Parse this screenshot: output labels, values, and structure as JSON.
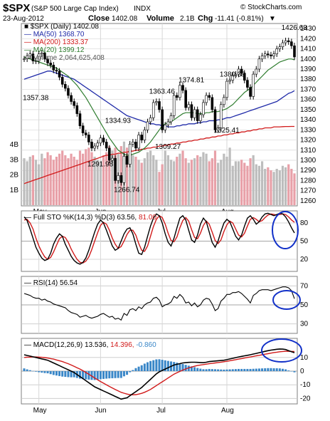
{
  "header": {
    "symbol": "$SPX",
    "name": "(S&P 500 Large Cap Index)",
    "exchange": "INDX",
    "watermark": "© StockCharts.com",
    "date": "23-Aug-2012",
    "close_label": "Close",
    "close_value": "1402.08",
    "volume_label": "Volume",
    "volume_value": "2.1B",
    "chg_label": "Chg",
    "chg_value": "-11.41 (-0.81%)",
    "chg_arrow": "▼"
  },
  "colors": {
    "price": "#000000",
    "ma50": "#1f2aa8",
    "ma200": "#d11a1a",
    "ma20": "#2f7d2f",
    "volume_up": "#bdbdbd",
    "volume_down": "#e8a0a8",
    "sto_k": "#000000",
    "sto_d": "#d11a1a",
    "macd_line": "#000000",
    "signal_line": "#d11a1a",
    "histogram": "#3a87c8",
    "circle": "#1130c8",
    "grid": "#d7d7d7"
  },
  "chart_data": [
    {
      "type": "candlestick",
      "title": "$SPX (Daily) 1402.08",
      "legend": [
        {
          "label": "$SPX (Daily)",
          "value": "1402.08",
          "color_key": "price"
        },
        {
          "label": "MA(50)",
          "value": "1368.70",
          "color_key": "ma50"
        },
        {
          "label": "MA(200)",
          "value": "1333.37",
          "color_key": "ma200"
        },
        {
          "label": "MA(20)",
          "value": "1399.12",
          "color_key": "ma20"
        },
        {
          "label": "Volume",
          "value": "2,064,625,408",
          "color_key": "volume_up"
        }
      ],
      "ylim": [
        1255,
        1435
      ],
      "yticks": [
        1260,
        1270,
        1280,
        1290,
        1300,
        1310,
        1320,
        1330,
        1340,
        1350,
        1360,
        1370,
        1380,
        1390,
        1400,
        1410,
        1420,
        1430
      ],
      "volume_ticks": [
        "1B",
        "2B",
        "3B",
        "4B"
      ],
      "xlabels": [
        "May",
        "Jun",
        "Jul",
        "Aug"
      ],
      "close": [
        1400,
        1403,
        1405,
        1398,
        1398,
        1405,
        1406,
        1400,
        1396,
        1394,
        1389,
        1388,
        1382,
        1375,
        1371,
        1364,
        1358,
        1354,
        1346,
        1334,
        1327,
        1325,
        1318,
        1312,
        1314,
        1317,
        1322,
        1318,
        1312,
        1300,
        1302,
        1280,
        1285,
        1278,
        1304,
        1296,
        1316,
        1318,
        1312,
        1325,
        1320,
        1330,
        1338,
        1342,
        1357,
        1358,
        1350,
        1330,
        1335,
        1338,
        1344,
        1364,
        1362,
        1374,
        1369,
        1352,
        1355,
        1342,
        1350,
        1339,
        1345,
        1357,
        1364,
        1362,
        1350,
        1330,
        1332,
        1355,
        1362,
        1378,
        1379,
        1384,
        1385,
        1390,
        1386,
        1379,
        1372,
        1363,
        1385,
        1390,
        1400,
        1403,
        1405,
        1404,
        1403,
        1405,
        1410,
        1412,
        1416,
        1418,
        1417,
        1413,
        1402
      ],
      "ma50": [
        1380,
        1381,
        1382,
        1383,
        1384,
        1385,
        1386,
        1387,
        1388,
        1388,
        1387,
        1386,
        1385,
        1384,
        1383,
        1382,
        1381,
        1380,
        1378,
        1376,
        1374,
        1372,
        1370,
        1368,
        1366,
        1364,
        1362,
        1360,
        1358,
        1356,
        1354,
        1352,
        1350,
        1348,
        1346,
        1344,
        1343,
        1342,
        1341,
        1340,
        1339,
        1338,
        1337,
        1336,
        1336,
        1335,
        1335,
        1334,
        1334,
        1333,
        1333,
        1333,
        1334,
        1334,
        1335,
        1335,
        1336,
        1336,
        1336,
        1337,
        1337,
        1338,
        1338,
        1339,
        1339,
        1339,
        1340,
        1340,
        1341,
        1342,
        1342,
        1343,
        1344,
        1345,
        1346,
        1347,
        1348,
        1349,
        1350,
        1351,
        1352,
        1353,
        1354,
        1355,
        1356,
        1357,
        1358,
        1360,
        1362,
        1364,
        1366,
        1367,
        1368.7
      ],
      "ma200": [
        1277,
        1278,
        1279,
        1280,
        1281,
        1282,
        1283,
        1284,
        1285,
        1286,
        1287,
        1288,
        1289,
        1290,
        1291,
        1292,
        1293,
        1294,
        1295,
        1296,
        1297,
        1298,
        1299,
        1300,
        1301,
        1302,
        1303,
        1304,
        1305,
        1305,
        1306,
        1306,
        1307,
        1307,
        1308,
        1308,
        1309,
        1309,
        1310,
        1310,
        1311,
        1311,
        1312,
        1312,
        1313,
        1313,
        1314,
        1314,
        1315,
        1315,
        1316,
        1316,
        1317,
        1317,
        1318,
        1318,
        1319,
        1319,
        1320,
        1320,
        1321,
        1321,
        1322,
        1322,
        1323,
        1323,
        1324,
        1324,
        1325,
        1325,
        1326,
        1326,
        1327,
        1327,
        1328,
        1328,
        1329,
        1329,
        1330,
        1330,
        1331,
        1331,
        1332,
        1332,
        1332,
        1333,
        1333,
        1333,
        1333.2,
        1333.3,
        1333.3,
        1333.37,
        1333.37
      ],
      "ma20": [
        1402,
        1401,
        1400,
        1399,
        1398,
        1397,
        1396,
        1395,
        1394,
        1393,
        1392,
        1391,
        1389,
        1387,
        1385,
        1383,
        1380,
        1377,
        1374,
        1370,
        1366,
        1362,
        1357,
        1352,
        1347,
        1342,
        1337,
        1332,
        1327,
        1322,
        1318,
        1314,
        1310,
        1308,
        1306,
        1305,
        1305,
        1306,
        1307,
        1308,
        1310,
        1312,
        1315,
        1318,
        1322,
        1326,
        1330,
        1334,
        1336,
        1337,
        1338,
        1340,
        1342,
        1344,
        1346,
        1347,
        1347,
        1347,
        1347,
        1346,
        1346,
        1346,
        1347,
        1347,
        1348,
        1348,
        1348,
        1349,
        1350,
        1351,
        1353,
        1355,
        1358,
        1361,
        1364,
        1367,
        1369,
        1371,
        1374,
        1377,
        1380,
        1383,
        1386,
        1389,
        1391,
        1393,
        1395,
        1397,
        1398,
        1399,
        1400,
        1400,
        1399.12
      ],
      "volume_b": [
        3.1,
        2.9,
        3.2,
        3.3,
        3.0,
        2.7,
        3.4,
        3.1,
        3.5,
        3.3,
        3.0,
        3.2,
        3.4,
        3.6,
        3.3,
        3.1,
        3.4,
        3.2,
        3.0,
        3.6,
        3.4,
        3.7,
        3.8,
        3.5,
        3.2,
        3.0,
        2.9,
        3.3,
        3.5,
        3.9,
        3.6,
        3.8,
        3.4,
        3.9,
        4.2,
        3.8,
        3.5,
        3.3,
        3.2,
        3.0,
        2.8,
        3.1,
        3.5,
        3.6,
        3.3,
        3.0,
        2.2,
        2.7,
        3.6,
        3.3,
        3.0,
        2.9,
        3.2,
        3.4,
        3.6,
        3.1,
        2.8,
        3.0,
        3.1,
        3.3,
        3.2,
        3.5,
        3.4,
        2.9,
        3.1,
        3.6,
        2.8,
        3.0,
        3.4,
        3.2,
        3.8,
        2.6,
        2.9,
        2.9,
        3.0,
        2.8,
        2.6,
        3.1,
        3.3,
        2.7,
        2.6,
        2.9,
        2.4,
        2.5,
        2.3,
        2.2,
        2.4,
        2.3,
        2.6,
        2.5,
        2.7,
        2.4,
        2.1
      ],
      "annotations": [
        {
          "text": "1426.68",
          "x": 89,
          "y": 1426.68
        },
        {
          "text": "1374.81",
          "x": 54,
          "y": 1374.81
        },
        {
          "text": "1380.39",
          "x": 68,
          "y": 1380.39
        },
        {
          "text": "1363.46",
          "x": 44,
          "y": 1363.46
        },
        {
          "text": "1357.38",
          "x": 1,
          "y": 1357.38
        },
        {
          "text": "1334.93",
          "x": 29,
          "y": 1334.93
        },
        {
          "text": "1325.41",
          "x": 66,
          "y": 1325.41
        },
        {
          "text": "1309.27",
          "x": 46,
          "y": 1309.27
        },
        {
          "text": "1291.98",
          "x": 23,
          "y": 1291.98
        },
        {
          "text": "1266.74",
          "x": 32,
          "y": 1266.74
        }
      ]
    },
    {
      "type": "line",
      "title": "Full STO %K(14,3) %D(3) 63.56, 81.00",
      "legend": [
        {
          "label": "Full STO %K(14,3) %D(3)",
          "value": "63.56,",
          "color_key": "sto_k"
        },
        {
          "label": "",
          "value": "81.00",
          "color_key": "sto_d"
        }
      ],
      "ylim": [
        0,
        100
      ],
      "yticks": [
        20,
        50,
        80
      ],
      "k": [
        90,
        84,
        70,
        55,
        40,
        30,
        22,
        18,
        20,
        30,
        45,
        55,
        62,
        58,
        45,
        35,
        25,
        18,
        14,
        12,
        15,
        22,
        35,
        50,
        65,
        78,
        85,
        80,
        68,
        55,
        42,
        35,
        38,
        50,
        62,
        70,
        72,
        62,
        45,
        30,
        28,
        40,
        58,
        75,
        88,
        95,
        92,
        80,
        62,
        48,
        42,
        55,
        72,
        88,
        92,
        85,
        68,
        52,
        48,
        60,
        78,
        88,
        82,
        65,
        48,
        40,
        50,
        66,
        80,
        86,
        82,
        70,
        58,
        52,
        60,
        75,
        88,
        92,
        86,
        78,
        82,
        90,
        95,
        96,
        94,
        92,
        94,
        96,
        95,
        90,
        82,
        72,
        63.56
      ],
      "d": [
        85,
        86,
        80,
        70,
        55,
        42,
        32,
        24,
        20,
        23,
        32,
        43,
        54,
        58,
        56,
        48,
        37,
        28,
        20,
        15,
        14,
        17,
        24,
        36,
        50,
        64,
        76,
        81,
        78,
        68,
        55,
        45,
        38,
        41,
        50,
        61,
        68,
        68,
        60,
        46,
        35,
        33,
        42,
        58,
        74,
        86,
        92,
        89,
        78,
        63,
        51,
        49,
        57,
        72,
        84,
        89,
        83,
        69,
        56,
        54,
        63,
        76,
        83,
        78,
        65,
        51,
        46,
        52,
        66,
        77,
        83,
        80,
        70,
        60,
        57,
        63,
        75,
        86,
        89,
        86,
        82,
        84,
        89,
        93,
        95,
        94,
        93,
        94,
        95,
        94,
        90,
        85,
        81.0
      ]
    },
    {
      "type": "line",
      "title": "RSI(14) 56.54",
      "legend": [
        {
          "label": "RSI(14)",
          "value": "56.54",
          "color_key": "price"
        }
      ],
      "ylim": [
        20,
        80
      ],
      "yticks": [
        30,
        50,
        70
      ],
      "rsi": [
        62,
        61,
        60,
        58,
        57,
        57,
        55,
        56,
        54,
        53,
        51,
        50,
        49,
        48,
        47,
        44,
        42,
        41,
        40,
        37,
        38,
        39,
        37,
        36,
        37,
        38,
        40,
        41,
        39,
        37,
        38,
        35,
        36,
        34,
        41,
        39,
        45,
        46,
        44,
        48,
        46,
        50,
        52,
        53,
        57,
        58,
        55,
        48,
        50,
        51,
        53,
        59,
        57,
        61,
        58,
        52,
        53,
        49,
        52,
        48,
        50,
        55,
        57,
        56,
        51,
        44,
        46,
        54,
        57,
        61,
        61,
        63,
        63,
        64,
        62,
        59,
        56,
        52,
        60,
        62,
        65,
        66,
        66,
        66,
        65,
        66,
        67,
        68,
        69,
        69,
        68,
        65,
        56.54
      ]
    },
    {
      "type": "line",
      "title": "MACD(12,26,9) 13.536, 14.396, -0.860",
      "legend": [
        {
          "label": "MACD(12,26,9)",
          "value": "13.536,",
          "color_key": "macd_line"
        },
        {
          "label": "",
          "value": "14.396,",
          "color_key": "signal_line"
        },
        {
          "label": "",
          "value": "-0.860",
          "color_key": "histogram"
        }
      ],
      "ylim": [
        -24,
        24
      ],
      "yticks": [
        -20,
        -10,
        0,
        10
      ],
      "macd": [
        12,
        11.5,
        11,
        10.5,
        10,
        9.5,
        9,
        8.5,
        8,
        7,
        6,
        5,
        4,
        3,
        2,
        1,
        0,
        -1,
        -2.5,
        -4,
        -5.5,
        -7,
        -8.5,
        -10,
        -11.5,
        -12.5,
        -13.5,
        -14.5,
        -15.5,
        -16.5,
        -17.5,
        -18.5,
        -19.5,
        -20.5,
        -20,
        -19.5,
        -18,
        -16.5,
        -15,
        -13.5,
        -12,
        -10,
        -8,
        -6,
        -4,
        -2,
        -0.5,
        0.5,
        1.5,
        2.5,
        3.5,
        4.5,
        5,
        5.5,
        6,
        6.2,
        6.4,
        6.5,
        6.5,
        6.4,
        6.3,
        6.2,
        6.5,
        7,
        7.2,
        7.4,
        7.6,
        7.8,
        8,
        8.4,
        8.9,
        9.4,
        9.9,
        10.4,
        10.8,
        11.2,
        11.6,
        12,
        12.5,
        13,
        13.5,
        14,
        14.5,
        15,
        15.4,
        15.7,
        16,
        16.2,
        16.1,
        15.8,
        15,
        14.2,
        13.536
      ],
      "signal": [
        10,
        10.2,
        10.3,
        10.4,
        10.4,
        10.3,
        10.1,
        9.9,
        9.6,
        9.2,
        8.8,
        8.2,
        7.6,
        7,
        6.2,
        5.4,
        4.5,
        3.5,
        2.5,
        1.5,
        0.3,
        -1,
        -2.3,
        -3.6,
        -5,
        -6.3,
        -7.6,
        -8.8,
        -10,
        -11.2,
        -12.3,
        -13.4,
        -14.5,
        -15.5,
        -16.2,
        -16.8,
        -17.2,
        -17.3,
        -17.2,
        -16.8,
        -16.3,
        -15.5,
        -14.5,
        -13.4,
        -12,
        -10.6,
        -9.2,
        -7.8,
        -6.4,
        -5,
        -3.6,
        -2.2,
        -1.2,
        -0.2,
        0.8,
        1.6,
        2.4,
        3,
        3.6,
        4.1,
        4.5,
        4.8,
        5.1,
        5.4,
        5.7,
        6,
        6.3,
        6.6,
        6.9,
        7.2,
        7.6,
        8,
        8.4,
        8.8,
        9.2,
        9.6,
        10,
        10.4,
        10.8,
        11.2,
        11.6,
        12,
        12.4,
        12.8,
        13.2,
        13.6,
        13.9,
        14.2,
        14.4,
        14.5,
        14.5,
        14.45,
        14.396
      ],
      "histogram": [
        2,
        1.3,
        0.7,
        0.1,
        -0.4,
        -0.8,
        -1.1,
        -1.4,
        -1.6,
        -2.2,
        -2.8,
        -3.2,
        -3.6,
        -4,
        -4.2,
        -4.4,
        -4.5,
        -4.5,
        -5,
        -5.5,
        -5.8,
        -6,
        -6.2,
        -6.4,
        -6.5,
        -6.2,
        -5.9,
        -5.7,
        -5.5,
        -5.3,
        -5.2,
        -5.1,
        -5,
        -5,
        -3.8,
        -2.7,
        -0.8,
        0.8,
        2.2,
        3.3,
        4.3,
        5.5,
        6.5,
        7.4,
        8,
        8.6,
        8.7,
        8.3,
        7.9,
        7.5,
        7.1,
        6.7,
        6.2,
        5.7,
        5.2,
        4.6,
        4,
        3.5,
        2.9,
        2.3,
        1.8,
        1.4,
        1.4,
        1.6,
        1.5,
        1.4,
        1.3,
        1.2,
        1.1,
        1.2,
        1.3,
        1.4,
        1.5,
        1.6,
        1.6,
        1.6,
        1.6,
        1.6,
        1.7,
        1.8,
        1.9,
        2,
        2.1,
        2.2,
        2.2,
        2.1,
        2.1,
        2,
        1.7,
        1.3,
        0.5,
        -0.25,
        -0.86
      ]
    }
  ]
}
